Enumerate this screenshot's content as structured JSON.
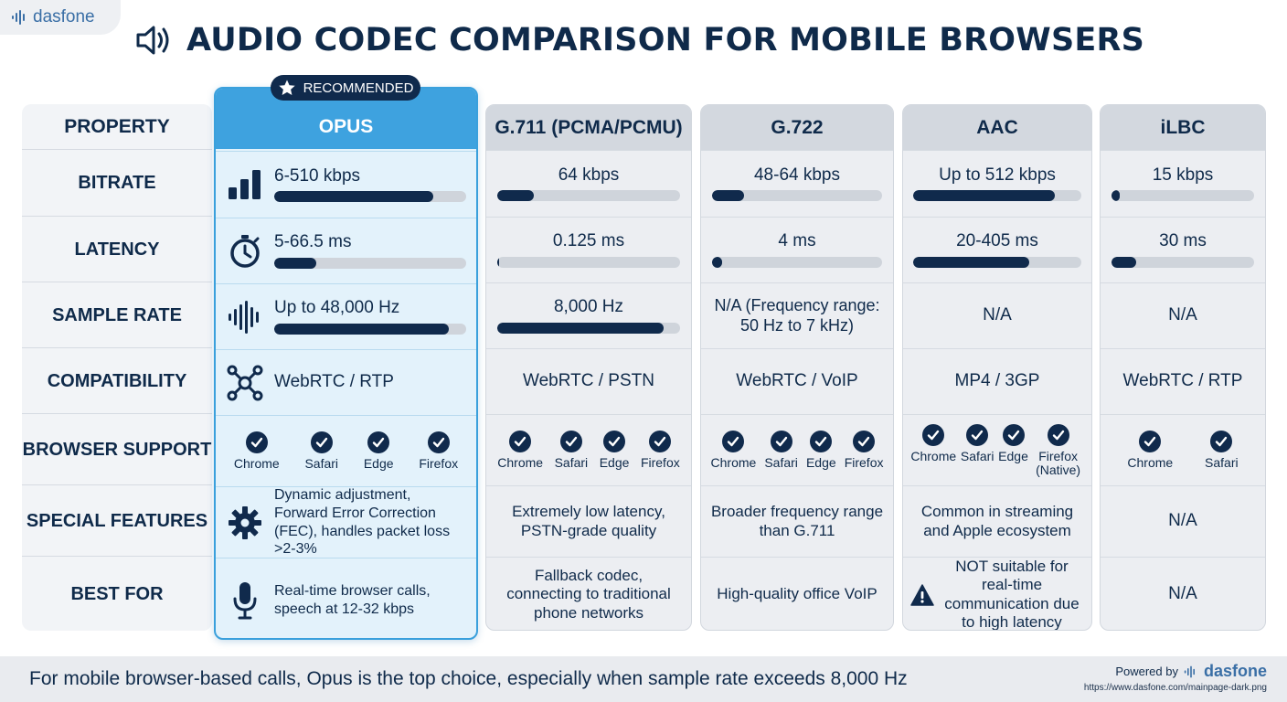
{
  "brand": {
    "name": "dasfone"
  },
  "title": "AUDIO CODEC COMPARISON FOR MOBILE BROWSERS",
  "badge": "RECOMMENDED",
  "properties": [
    "PROPERTY",
    "BITRATE",
    "LATENCY",
    "SAMPLE RATE",
    "COMPATIBILITY",
    "BROWSER SUPPORT",
    "SPECIAL FEATURES",
    "BEST FOR"
  ],
  "codecs": [
    {
      "name": "OPUS",
      "bitrate": "6-510 kbps",
      "bitrate_level": 0.83,
      "latency": "5-66.5 ms",
      "latency_level": 0.22,
      "sample_rate": "Up to 48,000 Hz",
      "sample_rate_level": 0.91,
      "compatibility": "WebRTC / RTP",
      "browsers": [
        "Chrome",
        "Safari",
        "Edge",
        "Firefox"
      ],
      "features": "Dynamic adjustment, Forward Error Correction (FEC), handles packet loss >2-3%",
      "best_for": "Real-time browser calls, speech at 12-32 kbps"
    },
    {
      "name": "G.711 (PCMA/PCMU)",
      "bitrate": "64 kbps",
      "bitrate_level": 0.2,
      "latency": "0.125 ms",
      "latency_level": 0.01,
      "sample_rate": "8,000 Hz",
      "sample_rate_level": 0.91,
      "compatibility": "WebRTC / PSTN",
      "browsers": [
        "Chrome",
        "Safari",
        "Edge",
        "Firefox"
      ],
      "features": "Extremely low latency, PSTN-grade quality",
      "best_for": "Fallback codec, connecting to traditional phone networks"
    },
    {
      "name": "G.722",
      "bitrate": "48-64 kbps",
      "bitrate_level": 0.19,
      "latency": "4 ms",
      "latency_level": 0.06,
      "sample_rate": "N/A (Frequency range: 50 Hz to 7 kHz)",
      "compatibility": "WebRTC / VoIP",
      "browsers": [
        "Chrome",
        "Safari",
        "Edge",
        "Firefox"
      ],
      "features": "Broader frequency range than G.711",
      "best_for": "High-quality office VoIP"
    },
    {
      "name": "AAC",
      "bitrate": "Up to 512 kbps",
      "bitrate_level": 0.84,
      "latency": "20-405 ms",
      "latency_level": 0.69,
      "sample_rate": "N/A",
      "compatibility": "MP4 / 3GP",
      "browsers": [
        "Chrome",
        "Safari",
        "Edge",
        "Firefox (Native)"
      ],
      "features": "Common in streaming and Apple ecosystem",
      "best_for": "NOT suitable for real-time communication due to high latency"
    },
    {
      "name": "iLBC",
      "bitrate": "15 kbps",
      "bitrate_level": 0.06,
      "latency": "30 ms",
      "latency_level": 0.17,
      "sample_rate": "N/A",
      "compatibility": "WebRTC / RTP",
      "browsers": [
        "Chrome",
        "Safari"
      ],
      "features": "N/A",
      "best_for": "N/A"
    }
  ],
  "footer": {
    "text": "For mobile browser-based calls, Opus is the top choice, especially when sample rate exceeds 8,000 Hz",
    "powered_by": "Powered by",
    "brand": "dasfone",
    "url": "https://www.dasfone.com/mainpage-dark.png"
  },
  "colors": {
    "accent": "#3ea2df",
    "navy": "#102a4c",
    "bar_track": "#cfd4db"
  }
}
